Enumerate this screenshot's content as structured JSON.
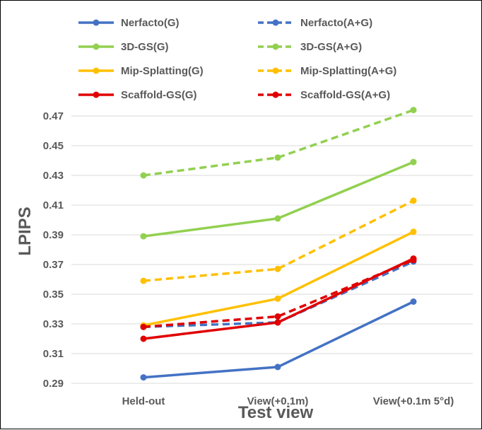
{
  "chart_data": {
    "type": "line",
    "title": "",
    "xlabel": "Test view",
    "ylabel": "LPIPS",
    "categories": [
      "Held-out",
      "View(+0.1m)",
      "View(+0.1m 5°d)"
    ],
    "ylim": [
      0.29,
      0.47
    ],
    "yticks": [
      "0.29",
      "0.31",
      "0.33",
      "0.35",
      "0.37",
      "0.39",
      "0.41",
      "0.43",
      "0.45",
      "0.47"
    ],
    "grid": true,
    "legend_position": "top",
    "series": [
      {
        "name": "Nerfacto(G)",
        "color": "#4472C4",
        "dashed": false,
        "values": [
          0.294,
          0.301,
          0.345
        ]
      },
      {
        "name": "Nerfacto(A+G)",
        "color": "#4472C4",
        "dashed": true,
        "values": [
          0.328,
          0.331,
          0.372
        ]
      },
      {
        "name": "3D-GS(G)",
        "color": "#92D050",
        "dashed": false,
        "values": [
          0.389,
          0.401,
          0.439
        ]
      },
      {
        "name": "3D-GS(A+G)",
        "color": "#92D050",
        "dashed": true,
        "values": [
          0.43,
          0.442,
          0.474
        ]
      },
      {
        "name": "Mip-Splatting(G)",
        "color": "#FFC000",
        "dashed": false,
        "values": [
          0.329,
          0.347,
          0.392
        ]
      },
      {
        "name": "Mip-Splatting(A+G)",
        "color": "#FFC000",
        "dashed": true,
        "values": [
          0.359,
          0.367,
          0.413
        ]
      },
      {
        "name": "Scaffold-GS(G)",
        "color": "#E00000",
        "dashed": false,
        "values": [
          0.32,
          0.331,
          0.374
        ]
      },
      {
        "name": "Scaffold-GS(A+G)",
        "color": "#E00000",
        "dashed": true,
        "values": [
          0.328,
          0.335,
          0.373
        ]
      }
    ]
  }
}
